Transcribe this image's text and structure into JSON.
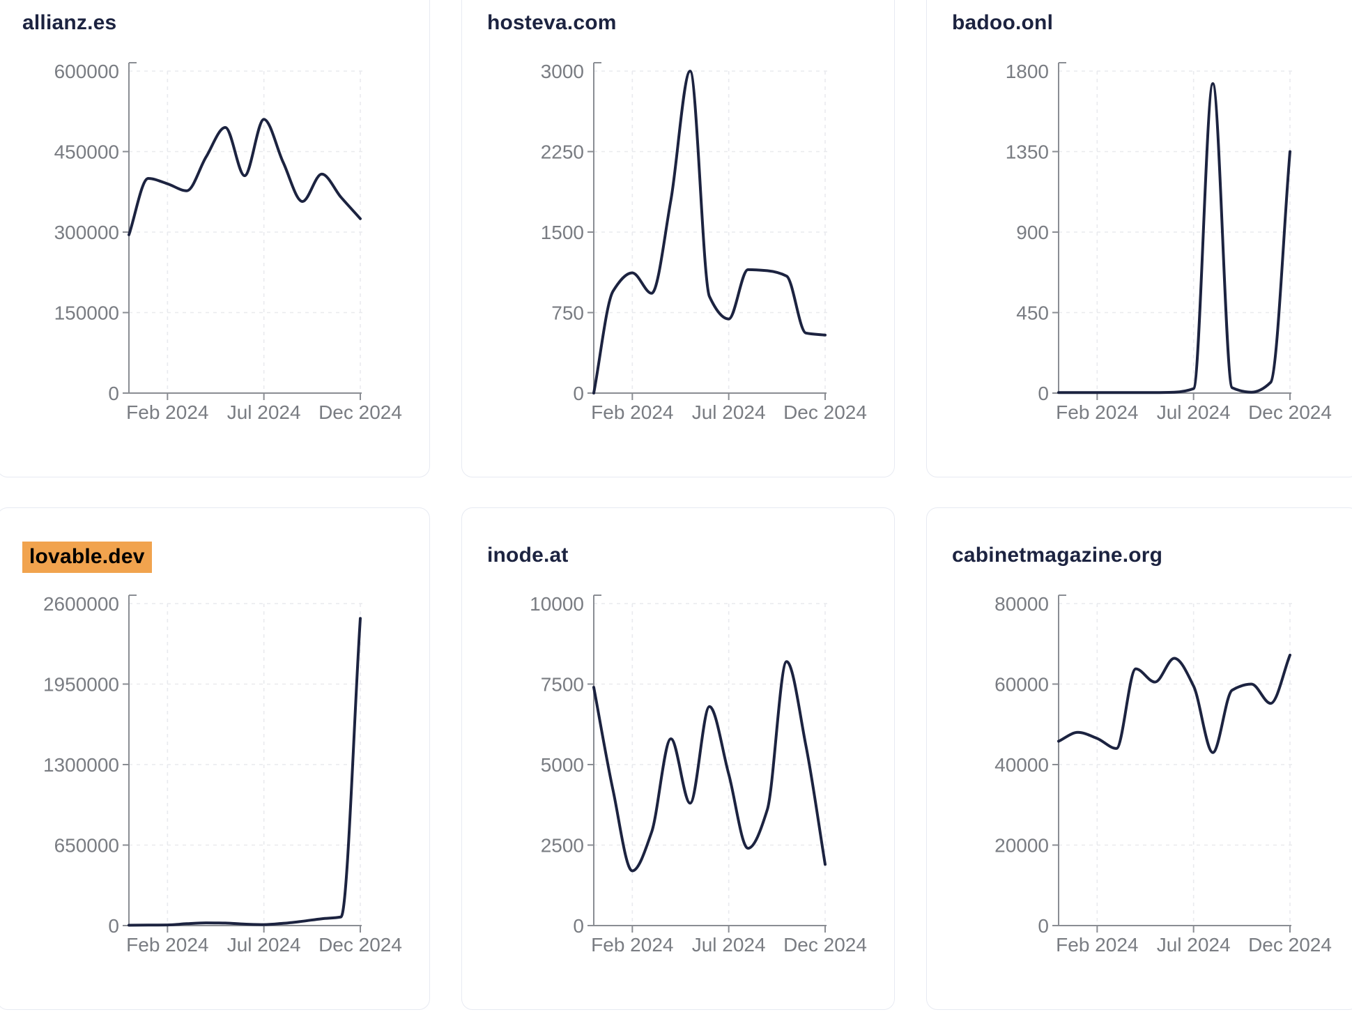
{
  "style": {
    "page_background": "#ffffff",
    "card_background": "#ffffff",
    "card_border_color": "#e7eaf2",
    "title_color": "#1c2340",
    "highlight_color": "#f1a34e",
    "highlight_text_color": "#000000",
    "line_color": "#1c2340",
    "axis_color": "#8a8d93",
    "tick_label_color": "#797c82",
    "grid_color": "#e9eaee"
  },
  "chart_data": [
    {
      "type": "line",
      "title": "allianz.es",
      "highlighted": false,
      "x_tick_labels": [
        "Feb 2024",
        "Jul 2024",
        "Dec 2024"
      ],
      "x_tick_indices": [
        2,
        7,
        12
      ],
      "y_ticks": [
        0,
        150000,
        300000,
        450000,
        600000
      ],
      "y_max": 600000,
      "ylim": [
        0,
        600000
      ],
      "grid": true,
      "values": [
        295000,
        400000,
        390000,
        377000,
        440000,
        495000,
        405000,
        510000,
        430000,
        357000,
        408000,
        365000,
        325000
      ]
    },
    {
      "type": "line",
      "title": "hosteva.com",
      "highlighted": false,
      "x_tick_labels": [
        "Feb 2024",
        "Jul 2024",
        "Dec 2024"
      ],
      "x_tick_indices": [
        2,
        7,
        12
      ],
      "y_ticks": [
        0,
        750,
        1500,
        2250,
        3000
      ],
      "y_max": 3000,
      "ylim": [
        0,
        3000
      ],
      "grid": true,
      "values": [
        0,
        950,
        1120,
        930,
        1800,
        3000,
        900,
        690,
        1150,
        1140,
        1090,
        560,
        540
      ]
    },
    {
      "type": "line",
      "title": "badoo.onl",
      "highlighted": false,
      "x_tick_labels": [
        "Feb 2024",
        "Jul 2024",
        "Dec 2024"
      ],
      "x_tick_indices": [
        2,
        7,
        12
      ],
      "y_ticks": [
        0,
        450,
        900,
        1350,
        1800
      ],
      "y_max": 1800,
      "ylim": [
        0,
        1800
      ],
      "grid": true,
      "values": [
        3,
        3,
        3,
        3,
        3,
        3,
        5,
        25,
        1730,
        30,
        5,
        60,
        1350
      ]
    },
    {
      "type": "line",
      "title": "lovable.dev",
      "highlighted": true,
      "x_tick_labels": [
        "Feb 2024",
        "Jul 2024",
        "Dec 2024"
      ],
      "x_tick_indices": [
        2,
        7,
        12
      ],
      "y_ticks": [
        0,
        650000,
        1300000,
        1950000,
        2600000
      ],
      "y_max": 2600000,
      "ylim": [
        0,
        2600000
      ],
      "grid": true,
      "values": [
        3000,
        4000,
        5000,
        15000,
        22000,
        20000,
        12000,
        8000,
        18000,
        35000,
        55000,
        70000,
        2480000
      ]
    },
    {
      "type": "line",
      "title": "inode.at",
      "highlighted": false,
      "x_tick_labels": [
        "Feb 2024",
        "Jul 2024",
        "Dec 2024"
      ],
      "x_tick_indices": [
        2,
        7,
        12
      ],
      "y_ticks": [
        0,
        2500,
        5000,
        7500,
        10000
      ],
      "y_max": 10000,
      "ylim": [
        0,
        10000
      ],
      "grid": true,
      "values": [
        7400,
        4200,
        1700,
        2900,
        5800,
        3800,
        6800,
        4700,
        2400,
        3600,
        8200,
        5600,
        1900
      ]
    },
    {
      "type": "line",
      "title": "cabinetmagazine.org",
      "highlighted": false,
      "x_tick_labels": [
        "Feb 2024",
        "Jul 2024",
        "Dec 2024"
      ],
      "x_tick_indices": [
        2,
        7,
        12
      ],
      "y_ticks": [
        0,
        20000,
        40000,
        60000,
        80000
      ],
      "y_max": 80000,
      "ylim": [
        0,
        80000
      ],
      "grid": true,
      "values": [
        45800,
        48000,
        46500,
        44000,
        63800,
        60500,
        66400,
        59500,
        43000,
        58500,
        60000,
        55200,
        67200
      ]
    }
  ]
}
